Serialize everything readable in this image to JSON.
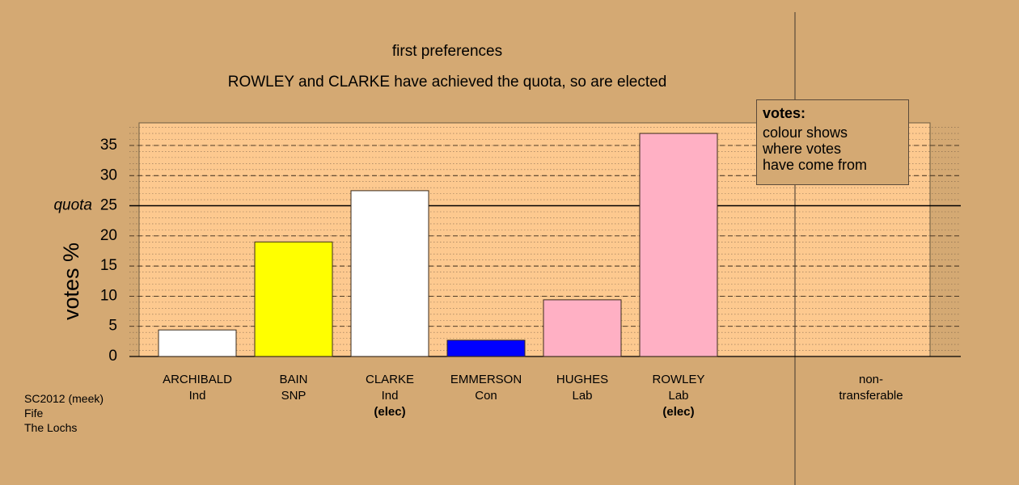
{
  "chart_data": {
    "type": "bar",
    "title": "first preferences",
    "subtitle": "ROWLEY and CLARKE have achieved the quota, so are elected",
    "y_label": "votes %",
    "categories": [
      "ARCHIBALD",
      "BAIN",
      "CLARKE",
      "EMMERSON",
      "HUGHES",
      "ROWLEY",
      "non-transferable"
    ],
    "parties": [
      "Ind",
      "SNP",
      "Ind",
      "Con",
      "Lab",
      "Lab",
      null
    ],
    "status": [
      null,
      null,
      "(elec)",
      null,
      null,
      "(elec)",
      null
    ],
    "values": [
      4.4,
      19.0,
      27.5,
      2.7,
      9.4,
      37.0,
      0
    ],
    "colors": [
      "#ffffff",
      "#ffff00",
      "#ffffff",
      "#0000ff",
      "#ffb0c4",
      "#ffb0c4",
      "#ffb0c4"
    ],
    "ylim": [
      0,
      38.75
    ],
    "yticks": [
      0,
      5,
      10,
      15,
      20,
      25,
      30,
      35
    ],
    "minor_grid_step": 1,
    "grid": true,
    "quota": 25,
    "quota_label": "quota",
    "legend": {
      "title": "votes:",
      "lines": [
        "colour shows",
        "where votes",
        "have come from"
      ]
    },
    "footer": [
      "SC2012 (meek)",
      "Fife",
      "The Lochs"
    ]
  }
}
